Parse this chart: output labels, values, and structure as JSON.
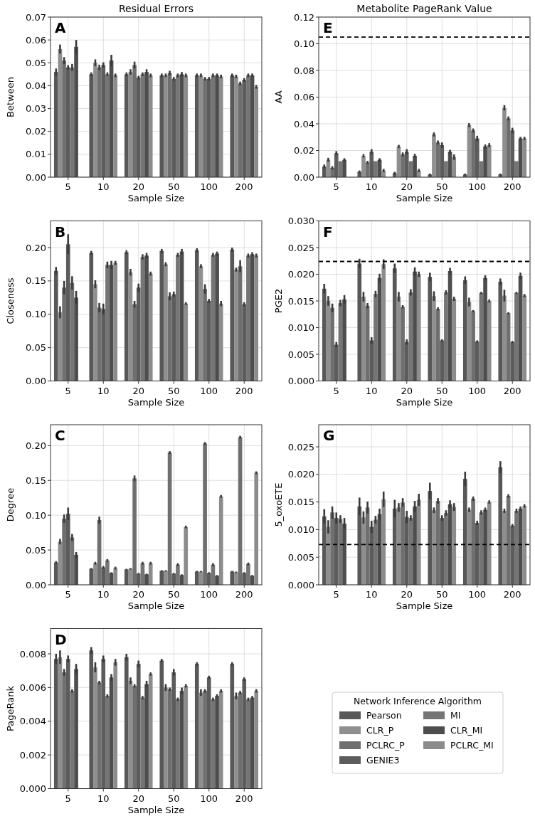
{
  "chart_data": [
    {
      "type": "bar",
      "title": "Residual Errors",
      "xlabel": "Sample Size",
      "ylabel": "Between",
      "annotations": [
        "A"
      ],
      "categories": [
        "5",
        "10",
        "20",
        "50",
        "100",
        "200"
      ],
      "grid": true,
      "legend": false,
      "ylim": [
        0,
        0.07
      ],
      "yticks": [
        {
          "value": 0,
          "label": "0.00"
        },
        {
          "value": 0.01,
          "label": "0.01"
        },
        {
          "value": 0.02,
          "label": "0.02"
        },
        {
          "value": 0.03,
          "label": "0.03"
        },
        {
          "value": 0.04,
          "label": "0.04"
        },
        {
          "value": 0.05,
          "label": "0.05"
        },
        {
          "value": 0.06,
          "label": "0.06"
        },
        {
          "value": 0.07,
          "label": "0.07"
        }
      ],
      "series": [
        {
          "color": "#585858",
          "values": [
            0.046,
            0.045,
            0.045,
            0.0445,
            0.0445,
            0.0445
          ],
          "errors": [
            0.0015,
            0.0008,
            0.0008,
            0.0008,
            0.0008,
            0.0008
          ]
        },
        {
          "color": "#8f8f8f",
          "values": [
            0.056,
            0.05,
            0.046,
            0.0445,
            0.0445,
            0.044
          ],
          "errors": [
            0.002,
            0.0015,
            0.0012,
            0.0008,
            0.0008,
            0.0008
          ]
        },
        {
          "color": "#6f6f6f",
          "values": [
            0.051,
            0.048,
            0.049,
            0.0455,
            0.043,
            0.041
          ],
          "errors": [
            0.0015,
            0.0012,
            0.0015,
            0.001,
            0.0008,
            0.0008
          ]
        },
        {
          "color": "#5c5c5c",
          "values": [
            0.048,
            0.049,
            0.0435,
            0.043,
            0.043,
            0.0425
          ],
          "errors": [
            0.001,
            0.0012,
            0.0008,
            0.0008,
            0.0008,
            0.0008
          ]
        },
        {
          "color": "#757575",
          "values": [
            0.048,
            0.045,
            0.045,
            0.0445,
            0.0445,
            0.0445
          ],
          "errors": [
            0.0015,
            0.0008,
            0.0008,
            0.0008,
            0.0008,
            0.0008
          ]
        },
        {
          "color": "#4d4d4d",
          "values": [
            0.057,
            0.051,
            0.046,
            0.045,
            0.0445,
            0.0445
          ],
          "errors": [
            0.003,
            0.0025,
            0.0012,
            0.001,
            0.0008,
            0.0008
          ]
        },
        {
          "color": "#8c8c8c",
          "values": [
            null,
            0.0445,
            0.0445,
            0.0445,
            0.044,
            0.0395
          ],
          "errors": [
            null,
            0.0008,
            0.0008,
            0.0008,
            0.0008,
            0.0008
          ]
        }
      ]
    },
    {
      "type": "bar",
      "xlabel": "Sample Size",
      "ylabel": "Closeness",
      "annotations": [
        "B"
      ],
      "categories": [
        "5",
        "10",
        "20",
        "50",
        "100",
        "200"
      ],
      "grid": true,
      "legend": false,
      "ylim": [
        0,
        0.24
      ],
      "yticks": [
        {
          "value": 0,
          "label": "0.00"
        },
        {
          "value": 0.05,
          "label": "0.05"
        },
        {
          "value": 0.1,
          "label": "0.10"
        },
        {
          "value": 0.15,
          "label": "0.15"
        },
        {
          "value": 0.2,
          "label": "0.20"
        }
      ],
      "series": [
        {
          "color": "#585858",
          "values": [
            0.165,
            0.192,
            0.193,
            0.195,
            0.196,
            0.197
          ],
          "errors": [
            0.006,
            0.003,
            0.003,
            0.003,
            0.003,
            0.003
          ]
        },
        {
          "color": "#8f8f8f",
          "values": [
            0.103,
            0.145,
            0.163,
            0.175,
            0.172,
            0.167
          ],
          "errors": [
            0.009,
            0.006,
            0.005,
            0.003,
            0.003,
            0.003
          ]
        },
        {
          "color": "#6f6f6f",
          "values": [
            0.14,
            0.11,
            0.115,
            0.127,
            0.138,
            0.172
          ],
          "errors": [
            0.01,
            0.007,
            0.005,
            0.006,
            0.007,
            0.009
          ]
        },
        {
          "color": "#5c5c5c",
          "values": [
            0.205,
            0.108,
            0.14,
            0.13,
            0.12,
            0.115
          ],
          "errors": [
            0.015,
            0.008,
            0.006,
            0.004,
            0.003,
            0.003
          ]
        },
        {
          "color": "#757575",
          "values": [
            0.147,
            0.174,
            0.186,
            0.189,
            0.189,
            0.188
          ],
          "errors": [
            0.01,
            0.005,
            0.004,
            0.003,
            0.003,
            0.003
          ]
        },
        {
          "color": "#4d4d4d",
          "values": [
            0.125,
            0.174,
            0.188,
            0.194,
            0.191,
            0.19
          ],
          "errors": [
            0.01,
            0.006,
            0.004,
            0.004,
            0.003,
            0.003
          ]
        },
        {
          "color": "#8c8c8c",
          "values": [
            null,
            0.177,
            0.161,
            0.116,
            0.116,
            0.188
          ],
          "errors": [
            null,
            0.003,
            0.003,
            0.002,
            0.004,
            0.003
          ]
        }
      ]
    },
    {
      "type": "bar",
      "xlabel": "Sample Size",
      "ylabel": "Degree",
      "annotations": [
        "C"
      ],
      "categories": [
        "5",
        "10",
        "20",
        "50",
        "100",
        "200"
      ],
      "grid": true,
      "legend": false,
      "ylim": [
        0,
        0.23
      ],
      "yticks": [
        {
          "value": 0,
          "label": "0.00"
        },
        {
          "value": 0.05,
          "label": "0.05"
        },
        {
          "value": 0.1,
          "label": "0.10"
        },
        {
          "value": 0.15,
          "label": "0.15"
        },
        {
          "value": 0.2,
          "label": "0.20"
        }
      ],
      "series": [
        {
          "color": "#585858",
          "values": [
            0.032,
            0.023,
            0.022,
            0.02,
            0.019,
            0.019
          ],
          "errors": [
            0.002,
            0.001,
            0.001,
            0.001,
            0.001,
            0.001
          ]
        },
        {
          "color": "#8f8f8f",
          "values": [
            0.062,
            0.031,
            0.023,
            0.02,
            0.019,
            0.018
          ],
          "errors": [
            0.004,
            0.002,
            0.001,
            0.001,
            0.001,
            0.001
          ]
        },
        {
          "color": "#6f6f6f",
          "values": [
            0.095,
            0.093,
            0.153,
            0.19,
            0.203,
            0.212
          ],
          "errors": [
            0.006,
            0.005,
            0.004,
            0.002,
            0.002,
            0.002
          ]
        },
        {
          "color": "#5c5c5c",
          "values": [
            0.102,
            0.025,
            0.016,
            0.016,
            0.017,
            0.017
          ],
          "errors": [
            0.009,
            0.002,
            0.001,
            0.001,
            0.001,
            0.001
          ]
        },
        {
          "color": "#757575",
          "values": [
            0.068,
            0.035,
            0.031,
            0.029,
            0.029,
            0.03
          ],
          "errors": [
            0.005,
            0.002,
            0.002,
            0.002,
            0.002,
            0.002
          ]
        },
        {
          "color": "#4d4d4d",
          "values": [
            0.043,
            0.017,
            0.015,
            0.014,
            0.013,
            0.013
          ],
          "errors": [
            0.004,
            0.001,
            0.001,
            0.001,
            0.001,
            0.001
          ]
        },
        {
          "color": "#8c8c8c",
          "values": [
            null,
            0.024,
            0.031,
            0.083,
            0.127,
            0.161
          ],
          "errors": [
            null,
            0.002,
            0.002,
            0.002,
            0.002,
            0.002
          ]
        }
      ]
    },
    {
      "type": "bar",
      "xlabel": "Sample Size",
      "ylabel": "PageRank",
      "annotations": [
        "D"
      ],
      "categories": [
        "5",
        "10",
        "20",
        "50",
        "100",
        "200"
      ],
      "grid": true,
      "legend": "right",
      "legend_title": "Network Inference Algorithm",
      "ylim": [
        0,
        0.0095
      ],
      "yticks": [
        {
          "value": 0,
          "label": "0.000"
        },
        {
          "value": 0.002,
          "label": "0.002"
        },
        {
          "value": 0.004,
          "label": "0.004"
        },
        {
          "value": 0.006,
          "label": "0.006"
        },
        {
          "value": 0.008,
          "label": "0.008"
        }
      ],
      "series": [
        {
          "name": "Pearson",
          "color": "#585858",
          "values": [
            0.0077,
            0.0082,
            0.0078,
            0.0076,
            0.0074,
            0.0074
          ],
          "errors": [
            0.0003,
            0.0002,
            0.0002,
            0.0001,
            0.0001,
            0.0001
          ]
        },
        {
          "name": "CLR_P",
          "color": "#8f8f8f",
          "values": [
            0.0078,
            0.0072,
            0.0064,
            0.006,
            0.0057,
            0.0055
          ],
          "errors": [
            0.0004,
            0.0003,
            0.0002,
            0.0002,
            0.0002,
            0.0002
          ]
        },
        {
          "name": "PCLRC_P",
          "color": "#6f6f6f",
          "values": [
            0.0069,
            0.0063,
            0.0061,
            0.0059,
            0.0058,
            0.0057
          ],
          "errors": [
            0.0002,
            0.0001,
            0.0001,
            0.0001,
            0.0001,
            0.0001
          ]
        },
        {
          "name": "GENIE3",
          "color": "#5c5c5c",
          "values": [
            0.0077,
            0.0077,
            0.0074,
            0.0069,
            0.0066,
            0.0065
          ],
          "errors": [
            0.0002,
            0.0002,
            0.0002,
            0.0002,
            0.0001,
            0.0001
          ]
        },
        {
          "name": "MI",
          "color": "#757575",
          "values": [
            0.0058,
            0.0055,
            0.0054,
            0.0053,
            0.0053,
            0.0053
          ],
          "errors": [
            0.0001,
            0.0001,
            0.0001,
            0.0001,
            0.0001,
            0.0001
          ]
        },
        {
          "name": "CLR_MI",
          "color": "#4d4d4d",
          "values": [
            0.0071,
            0.0066,
            0.0062,
            0.0058,
            0.0055,
            0.0054
          ],
          "errors": [
            0.0003,
            0.0002,
            0.0002,
            0.0002,
            0.0001,
            0.0001
          ]
        },
        {
          "name": "PCLRC_MI",
          "color": "#8c8c8c",
          "values": [
            null,
            0.0075,
            0.0068,
            0.0061,
            0.0058,
            0.0058
          ],
          "errors": [
            null,
            0.0002,
            0.0001,
            0.0001,
            0.0001,
            0.0001
          ]
        }
      ]
    },
    {
      "type": "bar",
      "title": "Metabolite PageRank Value",
      "xlabel": "Sample Size",
      "ylabel": "AA",
      "annotations": [
        "E"
      ],
      "categories": [
        "5",
        "10",
        "20",
        "50",
        "100",
        "200"
      ],
      "grid": true,
      "legend": false,
      "ylim": [
        0,
        0.12
      ],
      "yticks": [
        {
          "value": 0,
          "label": "0.00"
        },
        {
          "value": 0.02,
          "label": "0.02"
        },
        {
          "value": 0.04,
          "label": "0.04"
        },
        {
          "value": 0.06,
          "label": "0.06"
        },
        {
          "value": 0.08,
          "label": "0.08"
        },
        {
          "value": 0.1,
          "label": "0.10"
        },
        {
          "value": 0.12,
          "label": "0.12"
        }
      ],
      "ref_lines": [
        {
          "axis": "y",
          "value": 0.105,
          "color": "#000000",
          "line_style": "dashed"
        }
      ],
      "series": [
        {
          "color": "#585858",
          "values": [
            0.008,
            0.004,
            0.003,
            0.002,
            0.002,
            0.002
          ],
          "errors": [
            0.0015,
            0.001,
            0.001,
            0.0007,
            0.0007,
            0.0007
          ]
        },
        {
          "color": "#8f8f8f",
          "values": [
            0.013,
            0.016,
            0.023,
            0.032,
            0.039,
            0.052
          ],
          "errors": [
            0.0015,
            0.0012,
            0.0012,
            0.0015,
            0.0015,
            0.002
          ]
        },
        {
          "color": "#6f6f6f",
          "values": [
            0.007,
            0.011,
            0.017,
            0.026,
            0.035,
            0.044
          ],
          "errors": [
            0.0012,
            0.0012,
            0.0015,
            0.0015,
            0.0015,
            0.0015
          ]
        },
        {
          "color": "#5c5c5c",
          "values": [
            0.018,
            0.019,
            0.019,
            0.024,
            0.029,
            0.035
          ],
          "errors": [
            0.0015,
            0.002,
            0.002,
            0.002,
            0.002,
            0.002
          ]
        },
        {
          "color": "#757575",
          "values": [
            0.012,
            0.012,
            0.012,
            0.012,
            0.012,
            0.012
          ],
          "errors": [
            null,
            null,
            null,
            null,
            null,
            null
          ]
        },
        {
          "color": "#4d4d4d",
          "values": [
            0.013,
            0.013,
            0.016,
            0.019,
            0.023,
            0.029
          ],
          "errors": [
            0.0012,
            0.0012,
            0.0015,
            0.0015,
            0.0015,
            0.0012
          ]
        },
        {
          "color": "#8c8c8c",
          "values": [
            null,
            0.005,
            0.005,
            0.015,
            0.024,
            0.029
          ],
          "errors": [
            null,
            0.0012,
            0.0012,
            0.002,
            0.0015,
            0.0012
          ]
        }
      ]
    },
    {
      "type": "bar",
      "xlabel": "Sample Size",
      "ylabel": "PGE2",
      "annotations": [
        "F"
      ],
      "categories": [
        "5",
        "10",
        "20",
        "50",
        "100",
        "200"
      ],
      "grid": true,
      "legend": false,
      "ylim": [
        0,
        0.03
      ],
      "yticks": [
        {
          "value": 0,
          "label": "0.000"
        },
        {
          "value": 0.005,
          "label": "0.005"
        },
        {
          "value": 0.01,
          "label": "0.010"
        },
        {
          "value": 0.015,
          "label": "0.015"
        },
        {
          "value": 0.02,
          "label": "0.020"
        },
        {
          "value": 0.025,
          "label": "0.025"
        },
        {
          "value": 0.03,
          "label": "0.030"
        }
      ],
      "ref_lines": [
        {
          "axis": "y",
          "value": 0.0224,
          "color": "#000000",
          "line_style": "dashed"
        }
      ],
      "series": [
        {
          "color": "#585858",
          "values": [
            0.0173,
            0.022,
            0.0211,
            0.0195,
            0.0189,
            0.0186
          ],
          "errors": [
            0.0009,
            0.0009,
            0.0009,
            0.0008,
            0.0007,
            0.0006
          ]
        },
        {
          "color": "#8f8f8f",
          "values": [
            0.015,
            0.0158,
            0.0158,
            0.0159,
            0.0148,
            0.016
          ],
          "errors": [
            0.0009,
            0.0009,
            0.0009,
            0.0009,
            0.0008,
            0.0011
          ]
        },
        {
          "color": "#6f6f6f",
          "values": [
            0.0137,
            0.0141,
            0.0139,
            0.0135,
            0.0131,
            0.0127
          ],
          "errors": [
            0.0008,
            0.0005,
            0.0003,
            0.0003,
            0.0002,
            0.0002
          ]
        },
        {
          "color": "#5c5c5c",
          "values": [
            0.0068,
            0.0076,
            0.0073,
            0.0076,
            0.0074,
            0.0073
          ],
          "errors": [
            0.0005,
            0.0006,
            0.0005,
            0.0002,
            0.0002,
            0.0002
          ]
        },
        {
          "color": "#757575",
          "values": [
            0.0146,
            0.0163,
            0.0166,
            0.0166,
            0.0165,
            0.0165
          ],
          "errors": [
            0.0006,
            0.0006,
            0.0006,
            0.0004,
            0.0002,
            0.0002
          ]
        },
        {
          "color": "#4d4d4d",
          "values": [
            0.0153,
            0.0193,
            0.0205,
            0.0206,
            0.0193,
            0.0197
          ],
          "errors": [
            0.0008,
            0.0008,
            0.0008,
            0.0006,
            0.0005,
            0.0006
          ]
        },
        {
          "color": "#8c8c8c",
          "values": [
            null,
            0.0219,
            0.02,
            0.0154,
            0.015,
            0.016
          ],
          "errors": [
            null,
            0.0009,
            0.0005,
            0.0004,
            0.0003,
            0.0003
          ]
        }
      ]
    },
    {
      "type": "bar",
      "xlabel": "Sample Size",
      "ylabel": "5_oxoETE",
      "annotations": [
        "G"
      ],
      "categories": [
        "5",
        "10",
        "20",
        "50",
        "100",
        "200"
      ],
      "grid": true,
      "legend": false,
      "ylim": [
        0,
        0.029
      ],
      "yticks": [
        {
          "value": 0,
          "label": "0.000"
        },
        {
          "value": 0.005,
          "label": "0.005"
        },
        {
          "value": 0.01,
          "label": "0.010"
        },
        {
          "value": 0.015,
          "label": "0.015"
        },
        {
          "value": 0.02,
          "label": "0.020"
        },
        {
          "value": 0.025,
          "label": "0.025"
        }
      ],
      "ref_lines": [
        {
          "axis": "y",
          "value": 0.0073,
          "color": "#000000",
          "line_style": "dashed"
        }
      ],
      "series": [
        {
          "color": "#585858",
          "values": [
            0.0124,
            0.0142,
            0.0138,
            0.017,
            0.0192,
            0.0213
          ],
          "errors": [
            0.0013,
            0.0016,
            0.0016,
            0.0015,
            0.0013,
            0.0011
          ]
        },
        {
          "color": "#8f8f8f",
          "values": [
            0.0105,
            0.0122,
            0.014,
            0.0135,
            0.0136,
            0.0134
          ],
          "errors": [
            0.0012,
            0.0011,
            0.0008,
            0.0005,
            0.0004,
            0.0004
          ]
        },
        {
          "color": "#6f6f6f",
          "values": [
            0.0131,
            0.014,
            0.0149,
            0.0152,
            0.0156,
            0.0161
          ],
          "errors": [
            0.0011,
            0.0011,
            0.0008,
            0.0005,
            0.0004,
            0.0003
          ]
        },
        {
          "color": "#5c5c5c",
          "values": [
            0.0121,
            0.0105,
            0.0123,
            0.0121,
            0.0112,
            0.0107
          ],
          "errors": [
            0.001,
            0.0011,
            0.0011,
            0.0005,
            0.0004,
            0.0003
          ]
        },
        {
          "color": "#757575",
          "values": [
            0.0119,
            0.0118,
            0.0121,
            0.013,
            0.0131,
            0.0134
          ],
          "errors": [
            0.0007,
            0.0007,
            0.0005,
            0.0005,
            0.0004,
            0.0004
          ]
        },
        {
          "color": "#4d4d4d",
          "values": [
            0.0111,
            0.0128,
            0.0142,
            0.0146,
            0.0136,
            0.0138
          ],
          "errors": [
            0.001,
            0.001,
            0.001,
            0.0007,
            0.0004,
            0.0004
          ]
        },
        {
          "color": "#8c8c8c",
          "values": [
            null,
            0.0155,
            0.0154,
            0.0141,
            0.015,
            0.0143
          ],
          "errors": [
            null,
            0.0014,
            0.0011,
            0.0007,
            0.0003,
            0.0003
          ]
        }
      ]
    }
  ]
}
